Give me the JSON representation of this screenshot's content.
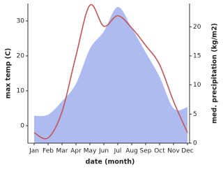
{
  "chart_data": {
    "type": "line",
    "x_label": "date (month)",
    "y_label": "max temp (C)",
    "y2_label": "med. precipitation (kg/m2)",
    "categories": [
      "Jan",
      "Feb",
      "Mar",
      "Apr",
      "May",
      "Jun",
      "Jul",
      "Aug",
      "Sep",
      "Oct",
      "Nov",
      "Dec"
    ],
    "ylim": [
      -5,
      35
    ],
    "yticks": [
      0,
      10,
      20,
      30
    ],
    "y2lim": [
      0,
      24
    ],
    "y2ticks": [
      0,
      5,
      10,
      15,
      20
    ],
    "series": [
      {
        "name": "precipitation",
        "kind": "area",
        "axis": "y2",
        "color": "#aebbf0",
        "values": [
          4.7,
          4.9,
          7.2,
          10.2,
          16.2,
          19.2,
          23.4,
          19.8,
          15.6,
          11.4,
          6.0,
          6.2
        ]
      },
      {
        "name": "max temp",
        "kind": "line",
        "color": "#c25555",
        "values": [
          -2,
          -3.5,
          4,
          20,
          34.5,
          28.5,
          31.5,
          28,
          23,
          17.5,
          7,
          -2
        ]
      }
    ]
  }
}
